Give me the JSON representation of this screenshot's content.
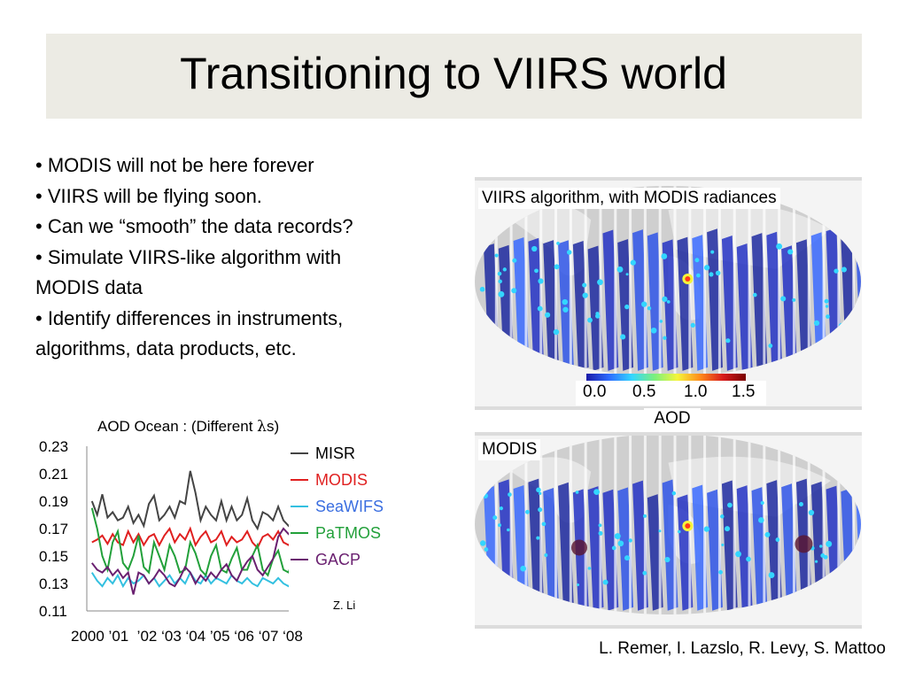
{
  "slide": {
    "title": "Transitioning to VIIRS world",
    "bullets": [
      "• MODIS will not be here forever",
      "• VIIRS will be flying soon.",
      "• Can we “smooth” the data records?",
      "• Simulate VIIRS-like algorithm with",
      "MODIS data",
      "• Identify differences in instruments,",
      "algorithms, data products, etc."
    ],
    "credit": "L. Remer, I. Lazslo, R. Levy, S. Mattoo"
  },
  "maps": {
    "top_caption": "VIIRS algorithm, with MODIS radiances",
    "bottom_caption": "MODIS",
    "colorbar_ticks": [
      "0.0",
      "0.5",
      "1.0",
      "1.5"
    ],
    "colorbar_label": "AOD",
    "colorbar_colors": [
      "#1a1aa8",
      "#2d6cff",
      "#33d6ff",
      "#7cf07c",
      "#f5f53a",
      "#ff8a1a",
      "#d81b1b",
      "#7a0000"
    ]
  },
  "chart_data": {
    "type": "line",
    "title_prefix": "AOD Ocean : (Different ",
    "title_symbol": "λ",
    "title_suffix": "s)",
    "xlabel_text": "2000 ’01  ’02 ‘03 ‘04 ’05 ‘06 ‘07 ‘08",
    "ylim": [
      0.11,
      0.23
    ],
    "xlim": [
      2000.0,
      2008.8
    ],
    "yticks": [
      "0.23",
      "0.21",
      "0.19",
      "0.17",
      "0.15",
      "0.13",
      "0.11"
    ],
    "note": "Z. Li",
    "series": [
      {
        "name": "MISR",
        "color": "#444444",
        "x": [
          2000.2,
          2000.4,
          2000.6,
          2000.8,
          2001.0,
          2001.2,
          2001.4,
          2001.6,
          2001.8,
          2002.0,
          2002.2,
          2002.4,
          2002.6,
          2002.8,
          2003.0,
          2003.2,
          2003.4,
          2003.6,
          2003.8,
          2004.0,
          2004.2,
          2004.4,
          2004.6,
          2004.8,
          2005.0,
          2005.2,
          2005.4,
          2005.6,
          2005.8,
          2006.0,
          2006.2,
          2006.4,
          2006.6,
          2006.8,
          2007.0,
          2007.2,
          2007.4,
          2007.6,
          2007.8,
          2008.0,
          2008.2,
          2008.4
        ],
        "y": [
          0.19,
          0.18,
          0.195,
          0.178,
          0.182,
          0.176,
          0.178,
          0.186,
          0.174,
          0.18,
          0.172,
          0.188,
          0.194,
          0.176,
          0.18,
          0.186,
          0.178,
          0.19,
          0.188,
          0.212,
          0.196,
          0.176,
          0.186,
          0.18,
          0.176,
          0.19,
          0.176,
          0.186,
          0.176,
          0.18,
          0.192,
          0.176,
          0.17,
          0.182,
          0.18,
          0.176,
          0.186,
          0.176,
          0.172,
          0.176,
          0.18,
          0.176
        ]
      },
      {
        "name": "MODIS",
        "color": "#e02020",
        "x": [
          2000.2,
          2000.4,
          2000.6,
          2000.8,
          2001.0,
          2001.2,
          2001.4,
          2001.6,
          2001.8,
          2002.0,
          2002.2,
          2002.4,
          2002.6,
          2002.8,
          2003.0,
          2003.2,
          2003.4,
          2003.6,
          2003.8,
          2004.0,
          2004.2,
          2004.4,
          2004.6,
          2004.8,
          2005.0,
          2005.2,
          2005.4,
          2005.6,
          2005.8,
          2006.0,
          2006.2,
          2006.4,
          2006.6,
          2006.8,
          2007.0,
          2007.2,
          2007.4,
          2007.6,
          2007.8,
          2008.0,
          2008.2,
          2008.4
        ],
        "y": [
          0.16,
          0.162,
          0.165,
          0.159,
          0.166,
          0.16,
          0.158,
          0.168,
          0.16,
          0.166,
          0.158,
          0.164,
          0.166,
          0.158,
          0.165,
          0.17,
          0.16,
          0.166,
          0.162,
          0.17,
          0.158,
          0.164,
          0.168,
          0.16,
          0.162,
          0.168,
          0.158,
          0.164,
          0.16,
          0.162,
          0.168,
          0.16,
          0.156,
          0.164,
          0.166,
          0.162,
          0.168,
          0.16,
          0.158,
          0.162,
          0.166,
          0.16
        ]
      },
      {
        "name": "SeaWIFS",
        "color": "#33c0e0",
        "x": [
          2000.2,
          2000.4,
          2000.6,
          2000.8,
          2001.0,
          2001.2,
          2001.4,
          2001.6,
          2001.8,
          2002.0,
          2002.2,
          2002.4,
          2002.6,
          2002.8,
          2003.0,
          2003.2,
          2003.4,
          2003.6,
          2003.8,
          2004.0,
          2004.2,
          2004.4,
          2004.6,
          2004.8,
          2005.0,
          2005.2,
          2005.4,
          2005.6,
          2005.8,
          2006.0,
          2006.2,
          2006.4,
          2006.6,
          2006.8,
          2007.0,
          2007.2,
          2007.4,
          2007.6,
          2007.8,
          2008.0,
          2008.2,
          2008.4
        ],
        "y": [
          0.138,
          0.132,
          0.128,
          0.134,
          0.13,
          0.136,
          0.128,
          0.134,
          0.13,
          0.132,
          0.136,
          0.13,
          0.134,
          0.128,
          0.132,
          0.136,
          0.13,
          0.134,
          0.13,
          0.138,
          0.132,
          0.13,
          0.136,
          0.13,
          0.134,
          0.132,
          0.13,
          0.136,
          0.132,
          0.13,
          0.134,
          0.13,
          0.128,
          0.134,
          0.132,
          0.13,
          0.134,
          0.13,
          0.128,
          0.132,
          0.134,
          0.13
        ]
      },
      {
        "name": "PaTMOS",
        "color": "#22a03a",
        "x": [
          2000.2,
          2000.4,
          2000.6,
          2000.8,
          2001.0,
          2001.2,
          2001.4,
          2001.6,
          2001.8,
          2002.0,
          2002.2,
          2002.4,
          2002.6,
          2002.8,
          2003.0,
          2003.2,
          2003.4,
          2003.6,
          2003.8,
          2004.0,
          2004.2,
          2004.4,
          2004.6,
          2004.8,
          2005.0,
          2005.2,
          2005.4,
          2005.6,
          2005.8,
          2006.0,
          2006.2,
          2006.4,
          2006.6,
          2006.8,
          2007.0,
          2007.2,
          2007.4,
          2007.6,
          2007.8,
          2008.0,
          2008.2,
          2008.4
        ],
        "y": [
          0.185,
          0.17,
          0.15,
          0.14,
          0.16,
          0.168,
          0.145,
          0.14,
          0.15,
          0.165,
          0.142,
          0.138,
          0.16,
          0.15,
          0.14,
          0.158,
          0.15,
          0.138,
          0.14,
          0.16,
          0.152,
          0.14,
          0.136,
          0.15,
          0.158,
          0.14,
          0.138,
          0.148,
          0.156,
          0.14,
          0.14,
          0.15,
          0.158,
          0.14,
          0.136,
          0.148,
          0.154,
          0.14,
          0.138,
          0.15,
          0.155,
          0.14
        ]
      },
      {
        "name": "GACP",
        "color": "#6a2070",
        "x": [
          2000.2,
          2000.4,
          2000.6,
          2000.8,
          2001.0,
          2001.2,
          2001.4,
          2001.6,
          2001.8,
          2002.0,
          2002.2,
          2002.4,
          2002.6,
          2002.8,
          2003.0,
          2003.2,
          2003.4,
          2003.6,
          2003.8,
          2004.0,
          2004.2,
          2004.4,
          2004.6,
          2004.8,
          2005.0,
          2005.2,
          2005.4,
          2005.6,
          2005.8,
          2006.0,
          2006.2,
          2006.4,
          2006.6,
          2006.8,
          2007.0,
          2007.2,
          2007.4,
          2007.6,
          2007.8,
          2008.0,
          2008.2,
          2008.4
        ],
        "y": [
          0.145,
          0.14,
          0.138,
          0.142,
          0.136,
          0.14,
          0.134,
          0.138,
          0.122,
          0.138,
          0.136,
          0.13,
          0.134,
          0.14,
          0.136,
          0.13,
          0.128,
          0.134,
          0.142,
          0.138,
          0.13,
          0.136,
          0.132,
          0.138,
          0.134,
          0.14,
          0.144,
          0.136,
          0.132,
          0.14,
          0.146,
          0.15,
          0.14,
          0.136,
          0.142,
          0.148,
          0.164,
          0.17,
          0.166,
          0.17,
          0.168,
          0.164
        ]
      }
    ]
  }
}
